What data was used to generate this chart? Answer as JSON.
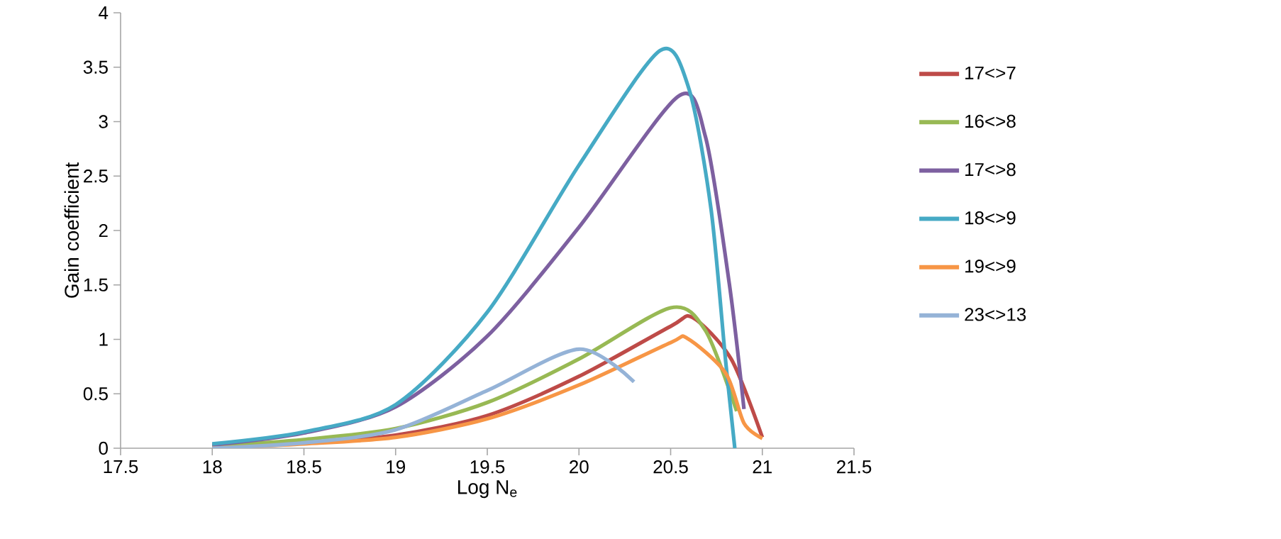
{
  "chart_data": {
    "type": "line",
    "xlabel": "Log N$_{e}$",
    "ylabel": "Gain  coefficient",
    "xlim": [
      17.5,
      21.5
    ],
    "xticks": [
      17.5,
      18,
      18.5,
      19,
      19.5,
      20,
      20.5,
      21,
      21.5
    ],
    "ylim": [
      0,
      4
    ],
    "yticks": [
      0,
      0.5,
      1,
      1.5,
      2,
      2.5,
      3,
      3.5,
      4
    ],
    "grid": false,
    "legend": "right",
    "line_style": "solid",
    "series": [
      {
        "name": "17<>7",
        "color": "#be4b48",
        "x": [
          18,
          18.5,
          19,
          19.5,
          20,
          20.5,
          20.62,
          20.83,
          21
        ],
        "values": [
          0.01,
          0.05,
          0.12,
          0.3,
          0.66,
          1.12,
          1.2,
          0.82,
          0.1
        ]
      },
      {
        "name": "16<>8",
        "color": "#98b954",
        "x": [
          18,
          18.5,
          19,
          19.5,
          20,
          20.5,
          20.69,
          20.86
        ],
        "values": [
          0.02,
          0.08,
          0.18,
          0.42,
          0.82,
          1.29,
          1.08,
          0.34
        ]
      },
      {
        "name": "17<>8",
        "color": "#7d60a0",
        "x": [
          18,
          18.5,
          19,
          19.5,
          20,
          20.54,
          20.69,
          20.82,
          20.9
        ],
        "values": [
          0.03,
          0.14,
          0.38,
          1.03,
          2.03,
          3.23,
          2.86,
          1.51,
          0.36
        ]
      },
      {
        "name": "18<>9",
        "color": "#46aac5",
        "x": [
          18,
          18.5,
          19,
          19.5,
          20,
          20.44,
          20.6,
          20.72,
          20.8,
          20.85
        ],
        "values": [
          0.04,
          0.15,
          0.4,
          1.25,
          2.6,
          3.65,
          3.3,
          2.2,
          0.8,
          0
        ]
      },
      {
        "name": "19<>9",
        "color": "#f79646",
        "x": [
          18,
          18.5,
          19,
          19.5,
          20,
          20.5,
          20.59,
          20.8,
          20.9,
          21
        ],
        "values": [
          0,
          0.04,
          0.1,
          0.27,
          0.58,
          0.97,
          1.01,
          0.69,
          0.23,
          0.09
        ]
      },
      {
        "name": "23<>13",
        "color": "#95b3d7",
        "x": [
          18,
          18.5,
          19,
          19.5,
          20,
          20.3
        ],
        "values": [
          0,
          0.05,
          0.17,
          0.53,
          0.91,
          0.61
        ]
      }
    ]
  }
}
